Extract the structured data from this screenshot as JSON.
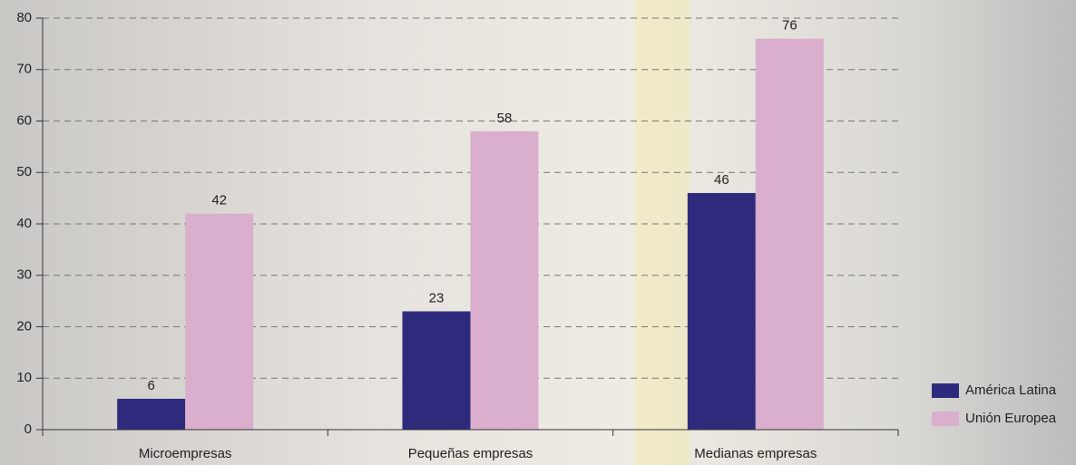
{
  "chart_data": {
    "type": "bar",
    "categories": [
      "Microempresas",
      "Pequeñas empresas",
      "Medianas empresas"
    ],
    "series": [
      {
        "name": "América Latina",
        "color": "#2f2b7c",
        "values": [
          6,
          23,
          46
        ]
      },
      {
        "name": "Unión Europea",
        "color": "#d9afcd",
        "values": [
          42,
          58,
          76
        ]
      }
    ],
    "ylim": [
      0,
      80
    ],
    "yticks": [
      0,
      10,
      20,
      30,
      40,
      50,
      60,
      70,
      80
    ],
    "grid": true,
    "legend": "bottom-right"
  }
}
